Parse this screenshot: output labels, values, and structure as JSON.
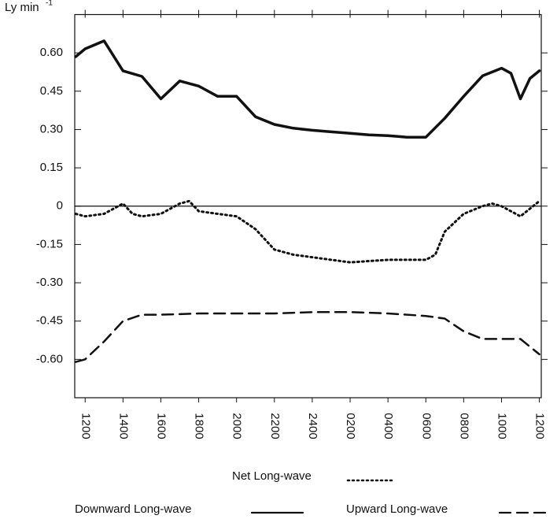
{
  "chart_data": {
    "type": "line",
    "y_label": "Ly min",
    "y_label_sup": "-1",
    "xlim": [
      -0.55,
      24.1
    ],
    "xticks": [
      {
        "value": 0,
        "label": "1200"
      },
      {
        "value": 2,
        "label": "1400"
      },
      {
        "value": 4,
        "label": "1600"
      },
      {
        "value": 6,
        "label": "1800"
      },
      {
        "value": 8,
        "label": "2000"
      },
      {
        "value": 10,
        "label": "2200"
      },
      {
        "value": 12,
        "label": "2400"
      },
      {
        "value": 14,
        "label": "0200"
      },
      {
        "value": 16,
        "label": "0400"
      },
      {
        "value": 18,
        "label": "0600"
      },
      {
        "value": 20,
        "label": "0800"
      },
      {
        "value": 22,
        "label": "1000"
      },
      {
        "value": 24,
        "label": "1200"
      }
    ],
    "ylim": [
      -0.75,
      0.75
    ],
    "yticks": [
      {
        "value": 0.6,
        "label": "0.60"
      },
      {
        "value": 0.45,
        "label": "0.45"
      },
      {
        "value": 0.3,
        "label": "0.30"
      },
      {
        "value": 0.15,
        "label": "0.15"
      },
      0,
      {
        "value": -0.15,
        "label": "-0.15"
      },
      {
        "value": -0.3,
        "label": "-0.30"
      },
      {
        "value": -0.45,
        "label": "-0.45"
      },
      {
        "value": -0.6,
        "label": "-0.60"
      }
    ],
    "series": [
      {
        "name": "Net Long-wave",
        "color": "#111111",
        "style": "dotted",
        "x": [
          -0.5,
          0,
          1,
          2,
          2.5,
          3,
          4,
          5,
          5.5,
          6,
          7,
          8,
          9,
          10,
          11,
          12,
          13,
          14,
          15,
          16,
          17,
          18,
          18.5,
          19,
          20,
          21,
          21.5,
          22,
          23,
          24
        ],
        "values": [
          -0.03,
          -0.04,
          -0.03,
          0.01,
          -0.03,
          -0.04,
          -0.03,
          0.01,
          0.02,
          -0.02,
          -0.03,
          -0.04,
          -0.09,
          -0.17,
          -0.19,
          -0.2,
          -0.21,
          -0.22,
          -0.215,
          -0.21,
          -0.21,
          -0.21,
          -0.19,
          -0.1,
          -0.03,
          0,
          0.01,
          0,
          -0.04,
          0.02
        ]
      },
      {
        "name": "Downward Long-wave",
        "color": "#111111",
        "style": "solid",
        "x": [
          -0.5,
          0,
          1,
          2,
          3,
          4,
          5,
          6,
          7,
          8,
          9,
          10,
          11,
          12,
          13,
          14,
          15,
          16,
          17,
          18,
          19,
          20,
          21,
          22,
          22.5,
          23,
          23.5,
          24
        ],
        "values": [
          0.585,
          0.616,
          0.647,
          0.53,
          0.508,
          0.42,
          0.49,
          0.47,
          0.43,
          0.43,
          0.35,
          0.32,
          0.305,
          0.297,
          0.291,
          0.285,
          0.279,
          0.276,
          0.27,
          0.27,
          0.344,
          0.43,
          0.51,
          0.54,
          0.52,
          0.42,
          0.5,
          0.53
        ]
      },
      {
        "name": "Upward Long-wave",
        "color": "#111111",
        "style": "dashed",
        "x": [
          -0.5,
          0,
          1,
          2,
          3,
          4,
          6,
          8,
          10,
          12,
          14,
          16,
          18,
          19,
          20,
          21,
          22,
          23,
          24
        ],
        "values": [
          -0.61,
          -0.6,
          -0.53,
          -0.45,
          -0.425,
          -0.425,
          -0.42,
          -0.42,
          -0.42,
          -0.415,
          -0.415,
          -0.42,
          -0.43,
          -0.44,
          -0.49,
          -0.52,
          -0.52,
          -0.52,
          -0.58
        ]
      }
    ]
  }
}
